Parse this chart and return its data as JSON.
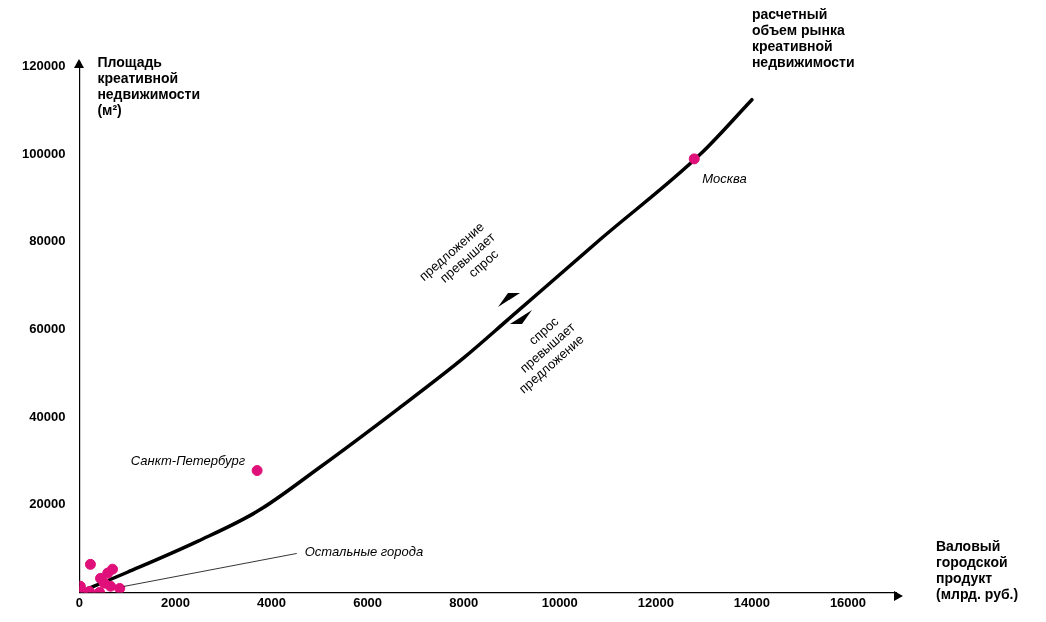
{
  "chart_data": {
    "type": "scatter",
    "xlabel": "Валовый городской продукт (млрд. руб.)",
    "ylabel": "Площадь креативной недвижимости (м²)",
    "xlim": [
      0,
      17000
    ],
    "xticks": [
      0,
      2000,
      4000,
      6000,
      8000,
      10000,
      12000,
      14000,
      16000
    ],
    "ylim": [
      0,
      121000
    ],
    "yticks": [
      20000,
      40000,
      60000,
      80000,
      100000,
      120000
    ],
    "grid": false,
    "legend": false,
    "marker": "circle",
    "series": [
      {
        "type": "line",
        "name": "расчетный объем рынка креативной недвижимости",
        "color": "#000000",
        "marker": "none",
        "x": [
          0,
          1000,
          2470,
          3720,
          5000,
          6650,
          8000,
          8950,
          10840,
          12930,
          14000
        ],
        "values": [
          0,
          4600,
          11700,
          18600,
          28500,
          42000,
          53500,
          62500,
          80500,
          100000,
          112400
        ]
      },
      {
        "color": "#e0107a",
        "x": [
          12800,
          3700,
          230,
          20,
          840,
          690,
          590,
          440,
          650,
          60,
          210,
          420,
          520
        ],
        "values": [
          98900,
          27800,
          6400,
          1400,
          900,
          5300,
          4400,
          3200,
          1400,
          200,
          200,
          0,
          2100
        ]
      }
    ],
    "annotations": [
      {
        "text": "Москва",
        "x": 12800,
        "y": 98900
      },
      {
        "text": "Санкт-Петербург",
        "x": 3700,
        "y": 27800
      },
      {
        "text": "Остальные города",
        "x": 840,
        "y": 900
      },
      "предложение превышает спрос",
      "спрос превышает предложение"
    ]
  }
}
